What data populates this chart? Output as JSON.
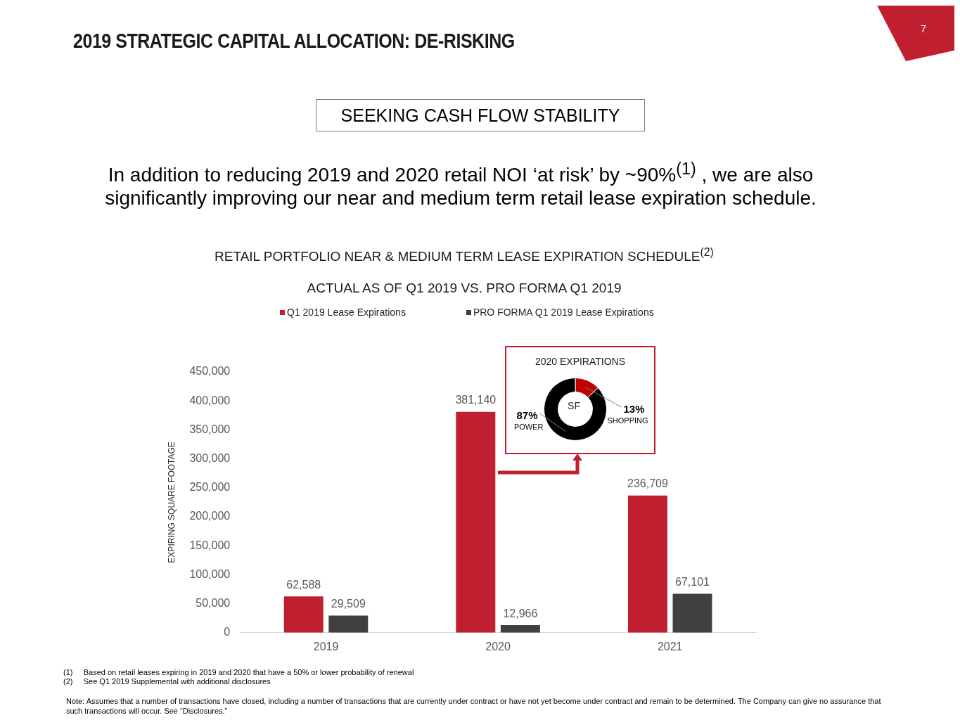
{
  "chart_data": [
    {
      "type": "bar",
      "title": "RETAIL PORTFOLIO NEAR & MEDIUM TERM LEASE EXPIRATION SCHEDULE$^{(2)}$",
      "subtitle": "ACTUAL AS OF Q1 2019 VS. PRO FORMA Q1 2019",
      "ylabel": "EXPIRING SQUARE FOOTAGE",
      "categories": [
        "2019",
        "2020",
        "2021"
      ],
      "series": [
        {
          "name": "Q1 2019 Lease Expirations",
          "color": "#c01f2f",
          "values": [
            62588,
            381140,
            236709
          ],
          "value_labels": [
            "62,588",
            "381,140",
            "236,709"
          ]
        },
        {
          "name": "PRO FORMA Q1 2019 Lease Expirations",
          "color": "#404040",
          "values": [
            29509,
            12966,
            67101
          ],
          "value_labels": [
            "29,509",
            "12,966",
            "67,101"
          ]
        }
      ],
      "ylim": [
        0,
        450000
      ],
      "yticks": [
        0,
        {
          "value": 50000,
          "label": "50,000"
        },
        {
          "value": 100000,
          "label": "100,000"
        },
        {
          "value": 150000,
          "label": "150,000"
        },
        {
          "value": 200000,
          "label": "200,000"
        },
        {
          "value": 250000,
          "label": "250,000"
        },
        {
          "value": 300000,
          "label": "300,000"
        },
        {
          "value": 350000,
          "label": "350,000"
        },
        {
          "value": 400000,
          "label": "400,000"
        },
        {
          "value": 450000,
          "label": "450,000"
        }
      ],
      "grid": false,
      "legend": "top",
      "annotations": [
        "2019 STRATEGIC CAPITAL ALLOCATION: DE-RISKING",
        "SEEKING CASH FLOW STABILITY",
        "In addition to reducing 2019 and 2020 retail NOI ‘at risk’ by ~90%$^{(1)}$ , we are also significantly improving our near and medium term retail lease expiration schedule.",
        "(1)     Based on retail leases expiring in 2019 and 2020 that have a 50% or lower probability of renewal",
        "(2)     See Q1 2019 Supplemental with additional disclosures",
        "Note: Assumes that a number of transactions have closed, including a number of transactions that are currently under contract or have not yet become under contract and remain to be determined. The Company can give no assurance that such transactions will  occur. See “Disclosures.”",
        "7"
      ]
    },
    {
      "type": "donut",
      "title": "2020 EXPIRATIONS",
      "categories": [
        "SHOPPING",
        "POWER"
      ],
      "values": [
        13,
        87
      ],
      "colors": [
        "#c00000",
        "#000000"
      ],
      "value_labels": [
        "13%",
        "87%"
      ],
      "annotations": [
        "SF"
      ]
    }
  ]
}
